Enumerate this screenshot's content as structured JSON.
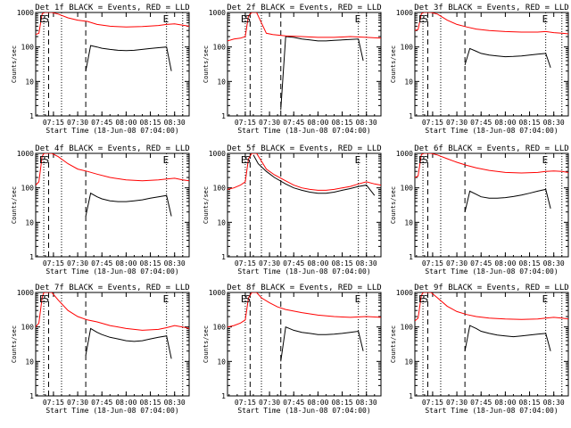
{
  "figure": {
    "xtick_labels": [
      "07:15",
      "07:30",
      "07:45",
      "08:00",
      "08:15",
      "08:30"
    ],
    "xlabel": "Start Time (18-Jun-08 07:04:00)",
    "ylabel": "Counts/sec",
    "ytick_labels": [
      "1",
      "10",
      "100",
      "1000"
    ],
    "marker_labels": [
      "E",
      "S",
      "E"
    ],
    "colors": {
      "events": "#000000",
      "lld": "#ff0000",
      "axes": "#000000"
    }
  },
  "chart_data": [
    {
      "type": "line",
      "title": "Det  1f BLACK = Events, RED = LLD",
      "xlabel": "Start Time (18-Jun-08 07:04:00)",
      "ylabel": "Counts/sec",
      "xlim": [
        "07:04",
        "08:39"
      ],
      "ylim": [
        1,
        1000
      ],
      "y_scale": "log",
      "markers": {
        "dotted": [
          "07:09",
          "07:20",
          "08:25",
          "08:35"
        ],
        "dashed": [
          "07:12",
          "07:35"
        ]
      },
      "series": [
        {
          "name": "Events",
          "color": "#000000",
          "x": [
            "07:35",
            "07:38",
            "07:42",
            "07:45",
            "07:50",
            "07:55",
            "08:00",
            "08:05",
            "08:10",
            "08:15",
            "08:20",
            "08:25",
            "08:28"
          ],
          "y": [
            20,
            110,
            100,
            92,
            85,
            80,
            78,
            80,
            85,
            90,
            95,
            100,
            20
          ]
        },
        {
          "name": "LLD",
          "color": "#ff0000",
          "x": [
            "07:04",
            "07:06",
            "07:08",
            "07:09",
            "07:12",
            "07:14",
            "07:18",
            "07:24",
            "07:30",
            "07:36",
            "07:42",
            "07:50",
            "08:00",
            "08:10",
            "08:20",
            "08:25",
            "08:30",
            "08:35",
            "08:39"
          ],
          "y": [
            230,
            250,
            900,
            1000,
            1000,
            1000,
            900,
            700,
            600,
            550,
            450,
            400,
            380,
            390,
            420,
            450,
            470,
            430,
            400
          ]
        }
      ]
    },
    {
      "type": "line",
      "title": "Det  2f BLACK = Events, RED = LLD",
      "xlabel": "Start Time (18-Jun-08 07:04:00)",
      "ylabel": "Counts/sec",
      "xlim": [
        "07:04",
        "08:39"
      ],
      "ylim": [
        1,
        1000
      ],
      "y_scale": "log",
      "markers": {
        "dotted": [
          "07:15",
          "07:25",
          "08:25",
          "08:30"
        ],
        "dashed": [
          "07:18",
          "07:37"
        ]
      },
      "series": [
        {
          "name": "Events",
          "color": "#000000",
          "x": [
            "07:37",
            "07:40",
            "07:45",
            "07:50",
            "07:55",
            "08:00",
            "08:05",
            "08:10",
            "08:15",
            "08:20",
            "08:25",
            "08:28"
          ],
          "y": [
            1.5,
            200,
            190,
            170,
            160,
            150,
            150,
            155,
            160,
            165,
            170,
            40
          ]
        },
        {
          "name": "LLD",
          "color": "#ff0000",
          "x": [
            "07:04",
            "07:08",
            "07:12",
            "07:15",
            "07:17",
            "07:19",
            "07:22",
            "07:25",
            "07:28",
            "07:32",
            "07:40",
            "07:50",
            "08:00",
            "08:10",
            "08:20",
            "08:30",
            "08:39"
          ],
          "y": [
            150,
            170,
            180,
            200,
            800,
            1000,
            1000,
            500,
            250,
            230,
            210,
            200,
            190,
            190,
            200,
            190,
            180
          ]
        }
      ]
    },
    {
      "type": "line",
      "title": "Det  3f BLACK = Events, RED = LLD",
      "xlabel": "Start Time (18-Jun-08 07:04:00)",
      "ylabel": "Counts/sec",
      "xlim": [
        "07:04",
        "08:39"
      ],
      "ylim": [
        1,
        1000
      ],
      "y_scale": "log",
      "markers": {
        "dotted": [
          "07:09",
          "07:20",
          "08:25",
          "08:35"
        ],
        "dashed": [
          "07:12",
          "07:35"
        ]
      },
      "series": [
        {
          "name": "Events",
          "color": "#000000",
          "x": [
            "07:35",
            "07:38",
            "07:42",
            "07:45",
            "07:50",
            "07:55",
            "08:00",
            "08:05",
            "08:10",
            "08:15",
            "08:20",
            "08:25",
            "08:28"
          ],
          "y": [
            30,
            90,
            75,
            65,
            58,
            55,
            52,
            53,
            55,
            58,
            62,
            65,
            25
          ]
        },
        {
          "name": "LLD",
          "color": "#ff0000",
          "x": [
            "07:04",
            "07:06",
            "07:08",
            "07:09",
            "07:12",
            "07:14",
            "07:18",
            "07:24",
            "07:30",
            "07:36",
            "07:42",
            "07:50",
            "08:00",
            "08:10",
            "08:20",
            "08:25",
            "08:30",
            "08:35",
            "08:39"
          ],
          "y": [
            300,
            320,
            900,
            1000,
            1000,
            1000,
            900,
            600,
            450,
            380,
            330,
            300,
            280,
            270,
            270,
            280,
            260,
            250,
            240
          ]
        }
      ]
    },
    {
      "type": "line",
      "title": "Det  4f BLACK = Events, RED = LLD",
      "xlabel": "Start Time (18-Jun-08 07:04:00)",
      "ylabel": "Counts/sec",
      "xlim": [
        "07:04",
        "08:39"
      ],
      "ylim": [
        1,
        1000
      ],
      "y_scale": "log",
      "markers": {
        "dotted": [
          "07:09",
          "07:20",
          "08:25",
          "08:35"
        ],
        "dashed": [
          "07:12",
          "07:35"
        ]
      },
      "series": [
        {
          "name": "Events",
          "color": "#000000",
          "x": [
            "07:35",
            "07:38",
            "07:42",
            "07:45",
            "07:50",
            "07:55",
            "08:00",
            "08:05",
            "08:10",
            "08:15",
            "08:20",
            "08:25",
            "08:28"
          ],
          "y": [
            15,
            70,
            55,
            48,
            42,
            40,
            40,
            42,
            45,
            50,
            55,
            60,
            15
          ]
        },
        {
          "name": "LLD",
          "color": "#ff0000",
          "x": [
            "07:04",
            "07:06",
            "07:08",
            "07:09",
            "07:12",
            "07:14",
            "07:18",
            "07:24",
            "07:30",
            "07:36",
            "07:42",
            "07:50",
            "08:00",
            "08:10",
            "08:20",
            "08:25",
            "08:30",
            "08:35",
            "08:39"
          ],
          "y": [
            120,
            150,
            800,
            1000,
            1000,
            1000,
            800,
            500,
            350,
            300,
            250,
            200,
            170,
            160,
            170,
            180,
            190,
            170,
            160
          ]
        }
      ]
    },
    {
      "type": "line",
      "title": "Det  5f BLACK = Events, RED = LLD",
      "xlabel": "Start Time (18-Jun-08 07:04:00)",
      "ylabel": "Counts/sec",
      "xlim": [
        "07:04",
        "08:39"
      ],
      "ylim": [
        1,
        1000
      ],
      "y_scale": "log",
      "markers": {
        "dotted": [
          "07:15",
          "07:25",
          "08:25",
          "08:30"
        ],
        "dashed": [
          "07:18",
          "07:37"
        ]
      },
      "series": [
        {
          "name": "Events",
          "color": "#000000",
          "x": [
            "07:20",
            "07:23",
            "07:28",
            "07:33",
            "07:40",
            "07:45",
            "07:50",
            "07:55",
            "08:00",
            "08:05",
            "08:10",
            "08:15",
            "08:20",
            "08:25",
            "08:30",
            "08:35"
          ],
          "y": [
            900,
            500,
            300,
            200,
            130,
            100,
            85,
            75,
            70,
            70,
            75,
            85,
            95,
            110,
            120,
            60
          ]
        },
        {
          "name": "LLD",
          "color": "#ff0000",
          "x": [
            "07:04",
            "07:08",
            "07:12",
            "07:15",
            "07:17",
            "07:19",
            "07:22",
            "07:25",
            "07:28",
            "07:33",
            "07:40",
            "07:45",
            "07:50",
            "07:55",
            "08:00",
            "08:05",
            "08:10",
            "08:15",
            "08:20",
            "08:25",
            "08:30",
            "08:35",
            "08:39"
          ],
          "y": [
            90,
            100,
            120,
            150,
            700,
            1000,
            1000,
            600,
            350,
            240,
            160,
            120,
            100,
            90,
            85,
            85,
            90,
            100,
            110,
            130,
            150,
            130,
            120
          ]
        }
      ]
    },
    {
      "type": "line",
      "title": "Det  6f BLACK = Events, RED = LLD",
      "xlabel": "Start Time (18-Jun-08 07:04:00)",
      "ylabel": "Counts/sec",
      "xlim": [
        "07:04",
        "08:39"
      ],
      "ylim": [
        1,
        1000
      ],
      "y_scale": "log",
      "markers": {
        "dotted": [
          "07:09",
          "07:20",
          "08:25",
          "08:35"
        ],
        "dashed": [
          "07:12",
          "07:35"
        ]
      },
      "series": [
        {
          "name": "Events",
          "color": "#000000",
          "x": [
            "07:35",
            "07:38",
            "07:42",
            "07:45",
            "07:50",
            "07:55",
            "08:00",
            "08:05",
            "08:10",
            "08:15",
            "08:20",
            "08:25",
            "08:28"
          ],
          "y": [
            20,
            80,
            65,
            55,
            50,
            50,
            52,
            56,
            62,
            70,
            80,
            90,
            25
          ]
        },
        {
          "name": "LLD",
          "color": "#ff0000",
          "x": [
            "07:04",
            "07:06",
            "07:08",
            "07:09",
            "07:12",
            "07:14",
            "07:18",
            "07:24",
            "07:30",
            "07:36",
            "07:42",
            "07:50",
            "08:00",
            "08:10",
            "08:20",
            "08:25",
            "08:30",
            "08:35",
            "08:39"
          ],
          "y": [
            200,
            220,
            900,
            1000,
            1000,
            1000,
            900,
            700,
            550,
            450,
            380,
            320,
            280,
            270,
            280,
            300,
            310,
            300,
            280
          ]
        }
      ]
    },
    {
      "type": "line",
      "title": "Det  7f BLACK = Events, RED = LLD",
      "xlabel": "Start Time (18-Jun-08 07:04:00)",
      "ylabel": "Counts/sec",
      "xlim": [
        "07:04",
        "08:39"
      ],
      "ylim": [
        1,
        1000
      ],
      "y_scale": "log",
      "markers": {
        "dotted": [
          "07:09",
          "07:20",
          "08:25",
          "08:35"
        ],
        "dashed": [
          "07:12",
          "07:35"
        ]
      },
      "series": [
        {
          "name": "Events",
          "color": "#000000",
          "x": [
            "07:35",
            "07:38",
            "07:42",
            "07:45",
            "07:50",
            "07:55",
            "08:00",
            "08:05",
            "08:10",
            "08:15",
            "08:20",
            "08:25",
            "08:28"
          ],
          "y": [
            15,
            90,
            70,
            60,
            50,
            45,
            40,
            38,
            40,
            45,
            50,
            55,
            12
          ]
        },
        {
          "name": "LLD",
          "color": "#ff0000",
          "x": [
            "07:04",
            "07:06",
            "07:08",
            "07:09",
            "07:12",
            "07:14",
            "07:18",
            "07:24",
            "07:30",
            "07:36",
            "07:42",
            "07:50",
            "08:00",
            "08:10",
            "08:20",
            "08:25",
            "08:30",
            "08:35",
            "08:39"
          ],
          "y": [
            100,
            130,
            700,
            1000,
            1000,
            1000,
            600,
            300,
            200,
            160,
            140,
            110,
            90,
            80,
            85,
            95,
            110,
            100,
            90
          ]
        }
      ]
    },
    {
      "type": "line",
      "title": "Det  8f BLACK = Events, RED = LLD",
      "xlabel": "Start Time (18-Jun-08 07:04:00)",
      "ylabel": "Counts/sec",
      "xlim": [
        "07:04",
        "08:39"
      ],
      "ylim": [
        1,
        1000
      ],
      "y_scale": "log",
      "markers": {
        "dotted": [
          "07:15",
          "07:25",
          "08:25",
          "08:30"
        ],
        "dashed": [
          "07:18",
          "07:37"
        ]
      },
      "series": [
        {
          "name": "Events",
          "color": "#000000",
          "x": [
            "07:37",
            "07:40",
            "07:45",
            "07:50",
            "07:55",
            "08:00",
            "08:05",
            "08:10",
            "08:15",
            "08:20",
            "08:25",
            "08:28"
          ],
          "y": [
            10,
            100,
            80,
            70,
            65,
            60,
            60,
            62,
            65,
            70,
            75,
            20
          ]
        },
        {
          "name": "LLD",
          "color": "#ff0000",
          "x": [
            "07:04",
            "07:08",
            "07:12",
            "07:15",
            "07:17",
            "07:19",
            "07:22",
            "07:25",
            "07:30",
            "07:35",
            "07:40",
            "07:50",
            "08:00",
            "08:10",
            "08:20",
            "08:30",
            "08:39"
          ],
          "y": [
            100,
            110,
            130,
            160,
            700,
            1000,
            1000,
            700,
            500,
            380,
            320,
            260,
            220,
            200,
            190,
            200,
            190
          ]
        }
      ]
    },
    {
      "type": "line",
      "title": "Det  9f BLACK = Events, RED = LLD",
      "xlabel": "Start Time (18-Jun-08 07:04:00)",
      "ylabel": "Counts/sec",
      "xlim": [
        "07:04",
        "08:39"
      ],
      "ylim": [
        1,
        1000
      ],
      "y_scale": "log",
      "markers": {
        "dotted": [
          "07:09",
          "07:20",
          "08:25",
          "08:35"
        ],
        "dashed": [
          "07:12",
          "07:35"
        ]
      },
      "series": [
        {
          "name": "Events",
          "color": "#000000",
          "x": [
            "07:35",
            "07:38",
            "07:42",
            "07:45",
            "07:50",
            "07:55",
            "08:00",
            "08:05",
            "08:10",
            "08:15",
            "08:20",
            "08:25",
            "08:28"
          ],
          "y": [
            20,
            110,
            90,
            75,
            65,
            58,
            55,
            52,
            55,
            58,
            62,
            65,
            20
          ]
        },
        {
          "name": "LLD",
          "color": "#ff0000",
          "x": [
            "07:04",
            "07:06",
            "07:08",
            "07:09",
            "07:12",
            "07:14",
            "07:18",
            "07:24",
            "07:30",
            "07:36",
            "07:42",
            "07:50",
            "08:00",
            "08:10",
            "08:20",
            "08:25",
            "08:30",
            "08:35",
            "08:39"
          ],
          "y": [
            150,
            180,
            800,
            1000,
            1000,
            1000,
            700,
            400,
            280,
            230,
            200,
            180,
            170,
            165,
            170,
            180,
            190,
            180,
            170
          ]
        }
      ]
    }
  ]
}
